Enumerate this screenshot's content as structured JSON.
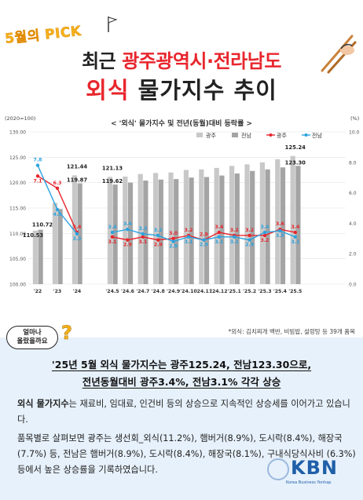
{
  "header": {
    "pick_badge": "5월의 PICK",
    "title_line1_prefix": "최근 ",
    "title_line1_accent": "광주광역시·전라남도",
    "title_line2_accent": "외식",
    "title_line2_rest": " 물가지수 추이"
  },
  "chart_data": {
    "type": "bar",
    "title": "< '외식' 물가지수 및 전년(동월)대비 등락률 >",
    "left_axis_unit": "(2020=100)",
    "right_axis_unit": "(%)",
    "categories": [
      "'22",
      "'23",
      "'24",
      "'24.5",
      "'24.6",
      "'24.7",
      "'24.8",
      "'24.9",
      "'24.10",
      "'24.11",
      "'24.12",
      "'25.1",
      "'25.2",
      "'25.3",
      "'25.4",
      "'25.5"
    ],
    "ylim": [
      100,
      130
    ],
    "yticks": [
      "100.00",
      "105.00",
      "110.00",
      "115.00",
      "120.00",
      "125.00",
      "130.00"
    ],
    "y2lim": [
      0,
      10
    ],
    "y2ticks": [
      "0.0",
      "2.0",
      "4.0",
      "6.0",
      "8.0",
      "10.0"
    ],
    "legend": [
      "광주",
      "전남",
      "광주",
      "전남"
    ],
    "series": [
      {
        "name": "광주",
        "kind": "bar",
        "color": "#c8c8c8",
        "values": [
          110.53,
          116.0,
          121.44,
          121.13,
          121.2,
          121.7,
          121.9,
          122.0,
          122.5,
          122.6,
          122.9,
          123.3,
          123.6,
          124.0,
          124.6,
          125.24
        ]
      },
      {
        "name": "전남",
        "kind": "bar",
        "color": "#a4a4a4",
        "values": [
          110.72,
          114.8,
          119.87,
          119.62,
          120.0,
          120.4,
          120.6,
          120.7,
          121.0,
          121.1,
          121.4,
          121.8,
          122.3,
          122.6,
          123.0,
          123.3
        ]
      },
      {
        "name": "광주",
        "kind": "line",
        "axis": "right",
        "color": "#e8262d",
        "values": [
          7.1,
          6.3,
          3.4,
          3.1,
          2.9,
          3.1,
          2.9,
          3.0,
          3.2,
          2.9,
          3.4,
          3.2,
          3.2,
          3.2,
          3.6,
          3.4
        ]
      },
      {
        "name": "전남",
        "kind": "line",
        "axis": "right",
        "color": "#2ca3e0",
        "values": [
          7.8,
          4.9,
          3.3,
          3.4,
          3.6,
          3.3,
          3.2,
          2.8,
          3.1,
          2.9,
          3.1,
          3.1,
          2.9,
          3.4,
          3.5,
          3.1
        ]
      }
    ],
    "bar_labels": [
      {
        "index": 0,
        "series": 0,
        "text": "110.53"
      },
      {
        "index": 0,
        "series": 1,
        "text": "110.72"
      },
      {
        "index": 2,
        "series": 0,
        "text": "121.44"
      },
      {
        "index": 2,
        "series": 1,
        "text": "119.87"
      },
      {
        "index": 3,
        "series": 0,
        "text": "121.13"
      },
      {
        "index": 3,
        "series": 1,
        "text": "119.62"
      },
      {
        "index": 15,
        "series": 0,
        "text": "125.24"
      },
      {
        "index": 15,
        "series": 1,
        "text": "123.30"
      }
    ]
  },
  "footnote": "*외식: 김치찌개 백반, 비빔밥, 설렁탕 등 39개 품목",
  "bubble": {
    "line1": "얼마나",
    "line2": "올랐을까요",
    "qmark": "?"
  },
  "headline": {
    "line1": "'25년 5월 외식 물가지수는 광주125.24, 전남123.30으로,",
    "line2": "전년동월대비 광주3.4%, 전남3.1% 각각 상승"
  },
  "body": {
    "p1_bold": "외식 물가지수",
    "p1_rest": "는 재료비, 임대료, 인건비 등의 상승으로 지속적인 상승세를 이어가고 있습니다.",
    "p2": "품목별로 살펴보면 광주는 생선회_외식(11.2%), 햄버거(8.9%), 도시락(8.4%), 해장국(7.7%) 등, 전남은 햄버거(8.9%), 도시락(8.4%), 해장국(8.1%), 구내식당식사비 (6.3%) 등에서 높은 상승률을 기록하였습니다."
  },
  "logo": {
    "text": "KBN",
    "sub": "Korea Business Yonhap"
  },
  "colors": {
    "accent": "#e8262d",
    "panel": "#e7f1fb",
    "gwangju_line": "#e8262d",
    "jeonnam_line": "#2ca3e0"
  }
}
